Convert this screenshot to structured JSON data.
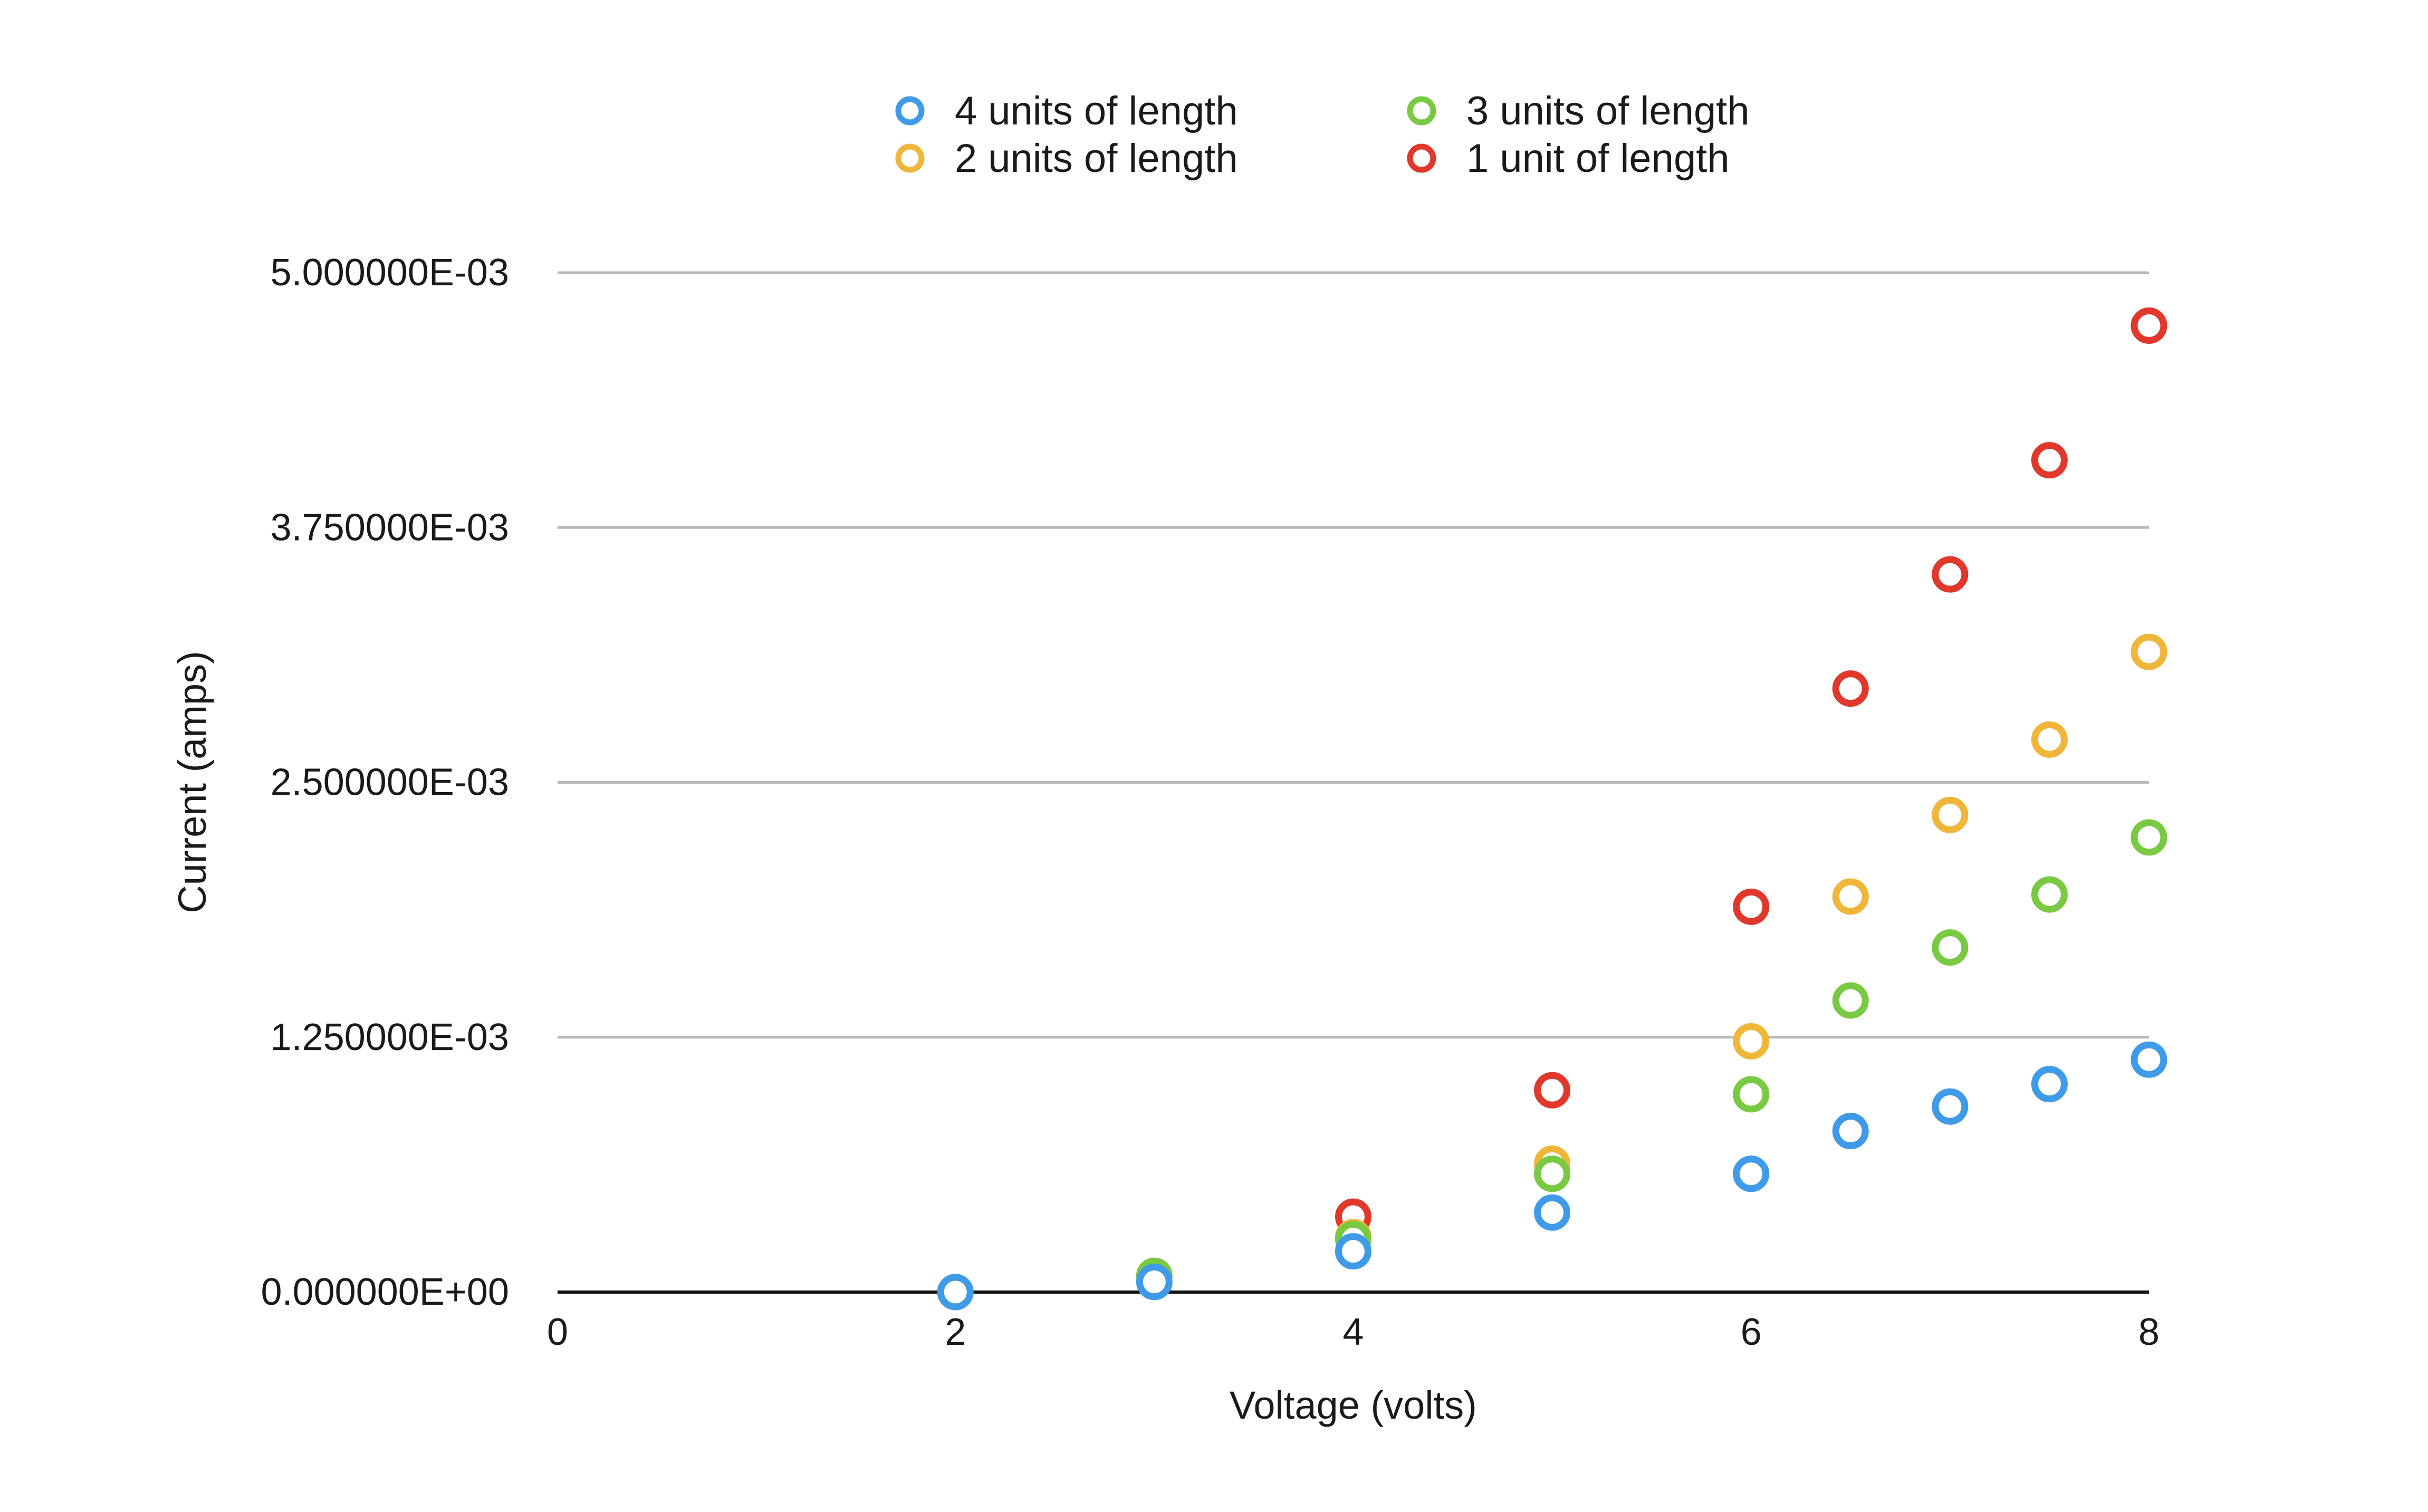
{
  "chart_data": {
    "type": "scatter",
    "xlabel": "Voltage (volts)",
    "ylabel": "Current (amps)",
    "xlim": [
      0,
      8
    ],
    "ylim": [
      0,
      0.005
    ],
    "x_ticks": [
      {
        "value": 0,
        "label": "0"
      },
      {
        "value": 2,
        "label": "2"
      },
      {
        "value": 4,
        "label": "4"
      },
      {
        "value": 6,
        "label": "6"
      },
      {
        "value": 8,
        "label": "8"
      }
    ],
    "y_ticks": [
      {
        "value": 0,
        "label": "0.000000E+00"
      },
      {
        "value": 0.00125,
        "label": "1.250000E-03"
      },
      {
        "value": 0.0025,
        "label": "2.500000E-03"
      },
      {
        "value": 0.00375,
        "label": "3.750000E-03"
      },
      {
        "value": 0.005,
        "label": "5.000000E-03"
      }
    ],
    "grid": true,
    "legend_position": "top-center",
    "series": [
      {
        "name": "1 unit of length",
        "color": "#e0382b",
        "points": [
          {
            "x": 4,
            "y": 0.00037
          },
          {
            "x": 5,
            "y": 0.00099
          },
          {
            "x": 6,
            "y": 0.00189
          },
          {
            "x": 6.5,
            "y": 0.00296
          },
          {
            "x": 7,
            "y": 0.00352
          },
          {
            "x": 7.5,
            "y": 0.00408
          },
          {
            "x": 8,
            "y": 0.00474
          }
        ]
      },
      {
        "name": "2 units of length",
        "color": "#f0b63a",
        "points": [
          {
            "x": 4,
            "y": 0.00027
          },
          {
            "x": 5,
            "y": 0.00063
          },
          {
            "x": 6,
            "y": 0.00123
          },
          {
            "x": 6.5,
            "y": 0.00194
          },
          {
            "x": 7,
            "y": 0.00234
          },
          {
            "x": 7.5,
            "y": 0.00271
          },
          {
            "x": 8,
            "y": 0.00314
          }
        ]
      },
      {
        "name": "3 units of length",
        "color": "#7ac943",
        "points": [
          {
            "x": 3,
            "y": 8e-05
          },
          {
            "x": 4,
            "y": 0.00026
          },
          {
            "x": 5,
            "y": 0.00058
          },
          {
            "x": 6,
            "y": 0.00097
          },
          {
            "x": 6.5,
            "y": 0.00143
          },
          {
            "x": 7,
            "y": 0.00169
          },
          {
            "x": 7.5,
            "y": 0.00195
          },
          {
            "x": 8,
            "y": 0.00223
          }
        ]
      },
      {
        "name": "4 units of length",
        "color": "#3f9be8",
        "points": [
          {
            "x": 2,
            "y": 0.0
          },
          {
            "x": 3,
            "y": 5e-05
          },
          {
            "x": 4,
            "y": 0.0002
          },
          {
            "x": 5,
            "y": 0.00039
          },
          {
            "x": 6,
            "y": 0.00058
          },
          {
            "x": 6.5,
            "y": 0.00079
          },
          {
            "x": 7,
            "y": 0.00091
          },
          {
            "x": 7.5,
            "y": 0.00102
          },
          {
            "x": 8,
            "y": 0.00114
          }
        ]
      }
    ]
  },
  "legend": {
    "items": [
      {
        "label": "4 units of length",
        "color": "#3f9be8"
      },
      {
        "label": "3 units of length",
        "color": "#7ac943"
      },
      {
        "label": "2 units of length",
        "color": "#f0b63a"
      },
      {
        "label": "1 unit of length",
        "color": "#e0382b"
      }
    ]
  }
}
